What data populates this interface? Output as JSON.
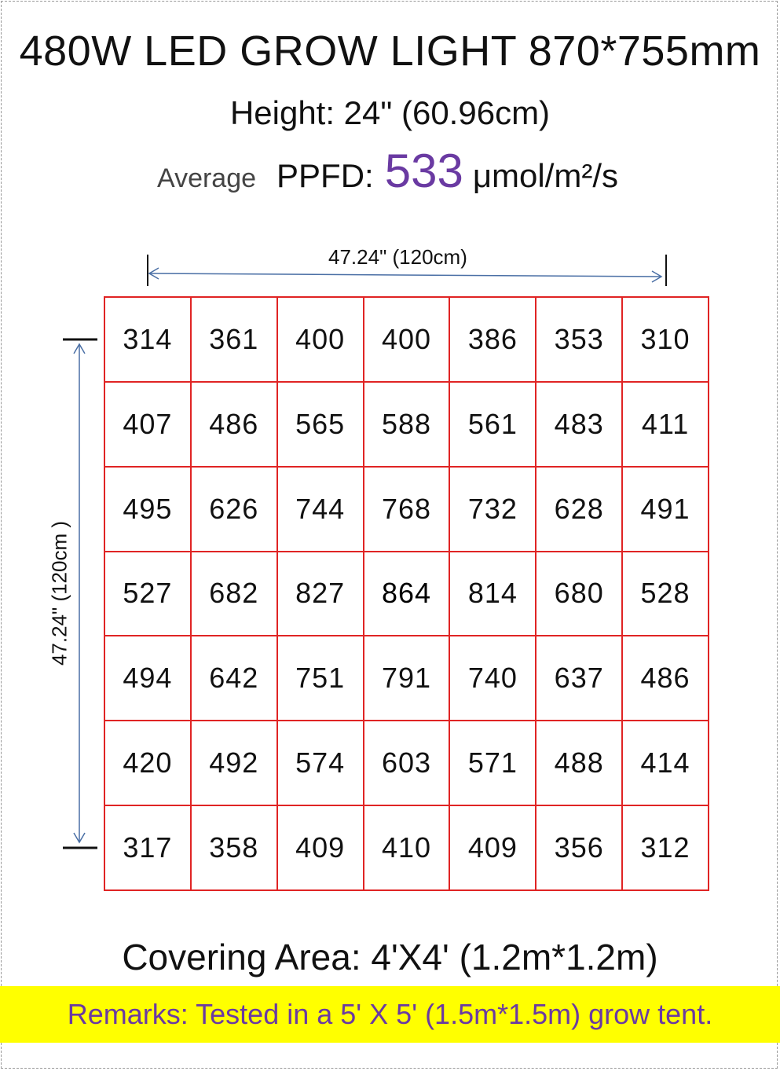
{
  "title": "480W LED GROW LIGHT 870*755mm",
  "height_text": "Height: 24\"  (60.96cm)",
  "average_label": "Average",
  "ppfd_label": "PPFD:",
  "ppfd_value": "533",
  "ppfd_unit": "μmol/m²/s",
  "horizontal_dimension": "47.24\" (120cm)",
  "vertical_dimension": "47.24\" (120cm )",
  "grid": [
    [
      "314",
      "361",
      "400",
      "400",
      "386",
      "353",
      "310"
    ],
    [
      "407",
      "486",
      "565",
      "588",
      "561",
      "483",
      "411"
    ],
    [
      "495",
      "626",
      "744",
      "768",
      "732",
      "628",
      "491"
    ],
    [
      "527",
      "682",
      "827",
      "864",
      "814",
      "680",
      "528"
    ],
    [
      "494",
      "642",
      "751",
      "791",
      "740",
      "637",
      "486"
    ],
    [
      "420",
      "492",
      "574",
      "603",
      "571",
      "488",
      "414"
    ],
    [
      "317",
      "358",
      "409",
      "410",
      "409",
      "356",
      "312"
    ]
  ],
  "covering_area": "Covering Area: 4'X4'   (1.2m*1.2m)",
  "remarks": "Remarks: Tested in a 5' X 5' (1.5m*1.5m) grow tent.",
  "colors": {
    "grid_line": "#e02424",
    "ppfd_value": "#6a3aa2",
    "remarks_text": "#6a3aa2",
    "remarks_background": "#ffff00",
    "dimension_arrow": "#4a6fa5"
  }
}
